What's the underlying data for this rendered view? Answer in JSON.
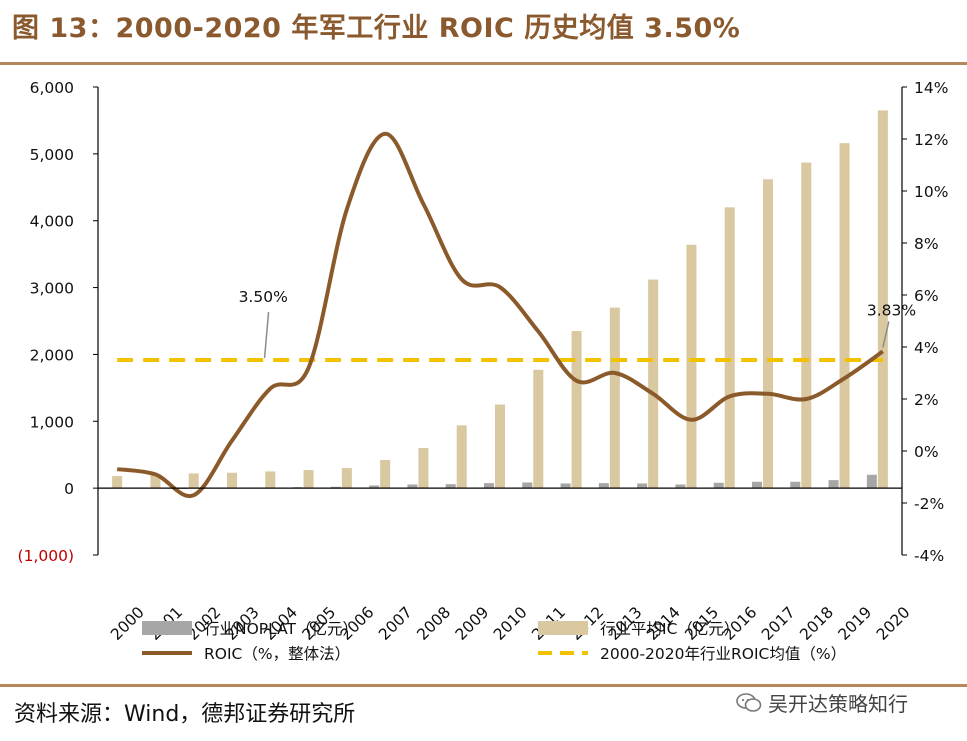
{
  "header": {
    "title": "图 13：2000-2020 年军工行业 ROIC 历史均值 3.50%"
  },
  "footer": {
    "source": "资料来源：Wind，德邦证券研究所",
    "watermark": "吴开达策略知行"
  },
  "colors": {
    "noplat": "#a6a6a6",
    "ic": "#d9c8a0",
    "roic": "#8b5a2b",
    "avg": "#f2c200",
    "neg": "#c00000",
    "rule": "#b7865a"
  },
  "chart_data": {
    "type": "bar",
    "title": "2000-2020 年军工行业 ROIC 历史均值 3.50%",
    "categories": [
      "2000",
      "2001",
      "2002",
      "2003",
      "2004",
      "2005",
      "2006",
      "2007",
      "2008",
      "2009",
      "2010",
      "2011",
      "2012",
      "2013",
      "2014",
      "2015",
      "2016",
      "2017",
      "2018",
      "2019",
      "2020"
    ],
    "series": [
      {
        "name": "行业NOPLAT（亿元）",
        "type": "bar",
        "axis": "left",
        "values": [
          5,
          10,
          -5,
          8,
          10,
          15,
          20,
          40,
          55,
          60,
          75,
          85,
          70,
          75,
          70,
          55,
          80,
          95,
          95,
          120,
          200
        ]
      },
      {
        "name": "行业平均IC（亿元）",
        "type": "bar",
        "axis": "left",
        "values": [
          180,
          210,
          220,
          230,
          250,
          270,
          300,
          420,
          600,
          940,
          1250,
          1770,
          2350,
          2700,
          3120,
          3640,
          4200,
          4620,
          4870,
          5160,
          5650
        ]
      },
      {
        "name": "ROIC（%，整体法）",
        "type": "line",
        "axis": "right",
        "values": [
          -0.7,
          -0.9,
          -1.7,
          0.4,
          2.4,
          3.2,
          9.3,
          12.2,
          9.5,
          6.6,
          6.3,
          4.6,
          2.7,
          3.0,
          2.2,
          1.2,
          2.1,
          2.2,
          2.0,
          2.8,
          3.83
        ]
      },
      {
        "name": "2000-2020年行业ROIC均值（%）",
        "type": "line",
        "axis": "right",
        "dashed": true,
        "values": [
          3.5,
          3.5,
          3.5,
          3.5,
          3.5,
          3.5,
          3.5,
          3.5,
          3.5,
          3.5,
          3.5,
          3.5,
          3.5,
          3.5,
          3.5,
          3.5,
          3.5,
          3.5,
          3.5,
          3.5,
          3.5
        ]
      }
    ],
    "left_axis": {
      "ylim": [
        -1000,
        6000
      ],
      "ticks": [
        -1000,
        0,
        1000,
        2000,
        3000,
        4000,
        5000,
        6000
      ],
      "tick_labels": [
        "(1,000)",
        "0",
        "1,000",
        "2,000",
        "3,000",
        "4,000",
        "5,000",
        "6,000"
      ]
    },
    "right_axis": {
      "ylim": [
        -4,
        14
      ],
      "ticks": [
        -4,
        -2,
        0,
        2,
        4,
        6,
        8,
        10,
        12,
        14
      ],
      "tick_labels": [
        "-4%",
        "-2%",
        "0%",
        "2%",
        "4%",
        "6%",
        "8%",
        "10%",
        "12%",
        "14%"
      ]
    },
    "annotations": [
      {
        "text": "3.50%",
        "category": "2005",
        "value": 3.5
      },
      {
        "text": "3.83%",
        "category": "2020",
        "value": 3.83
      }
    ],
    "legend": {
      "placement": "bottom",
      "items": [
        "行业NOPLAT（亿元）",
        "行业平均IC（亿元）",
        "ROIC（%，整体法）",
        "2000-2020年行业ROIC均值（%）"
      ]
    }
  }
}
